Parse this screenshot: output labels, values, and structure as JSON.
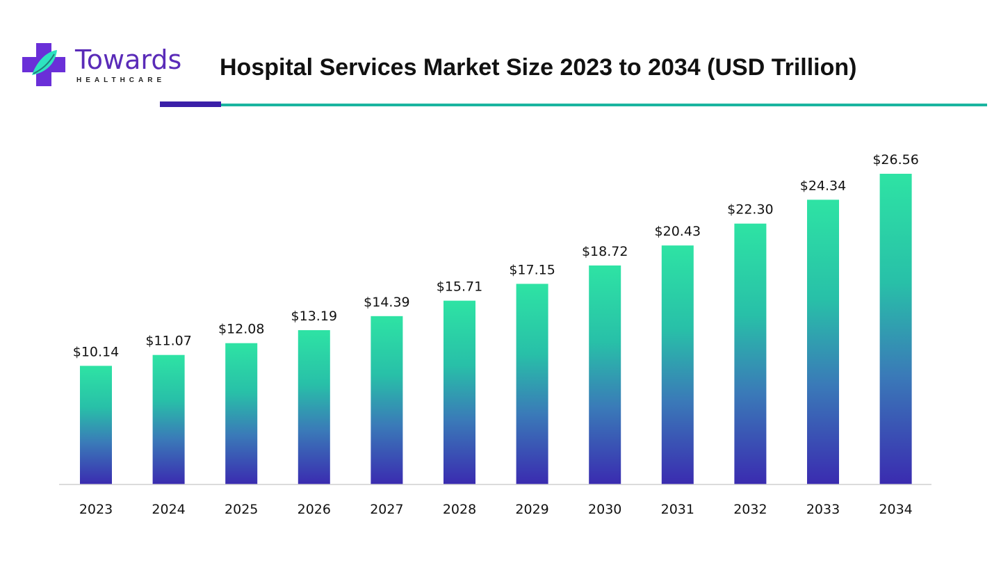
{
  "logo": {
    "name": "Towards",
    "subtitle": "HEALTHCARE"
  },
  "colors": {
    "teal": "#2ee3a4",
    "mid": "#2f93b0",
    "purple": "#3a2bb0",
    "rule_purple": "#3b1fa8",
    "rule_teal": "#1bb5a0"
  },
  "chart_data": {
    "type": "bar",
    "title": "Hospital Services Market Size 2023 to 2034 (USD Trillion)",
    "xlabel": "",
    "ylabel": "",
    "categories": [
      "2023",
      "2024",
      "2025",
      "2026",
      "2027",
      "2028",
      "2029",
      "2030",
      "2031",
      "2032",
      "2033",
      "2034"
    ],
    "values": [
      10.14,
      11.07,
      12.08,
      13.19,
      14.39,
      15.71,
      17.15,
      18.72,
      20.43,
      22.3,
      24.34,
      26.56
    ],
    "labels": [
      "$10.14",
      "$11.07",
      "$12.08",
      "$13.19",
      "$14.39",
      "$15.71",
      "$17.15",
      "$18.72",
      "$20.43",
      "$22.30",
      "$24.34",
      "$26.56"
    ],
    "ylim": [
      0,
      26.56
    ],
    "grid": false,
    "legend": "none"
  }
}
